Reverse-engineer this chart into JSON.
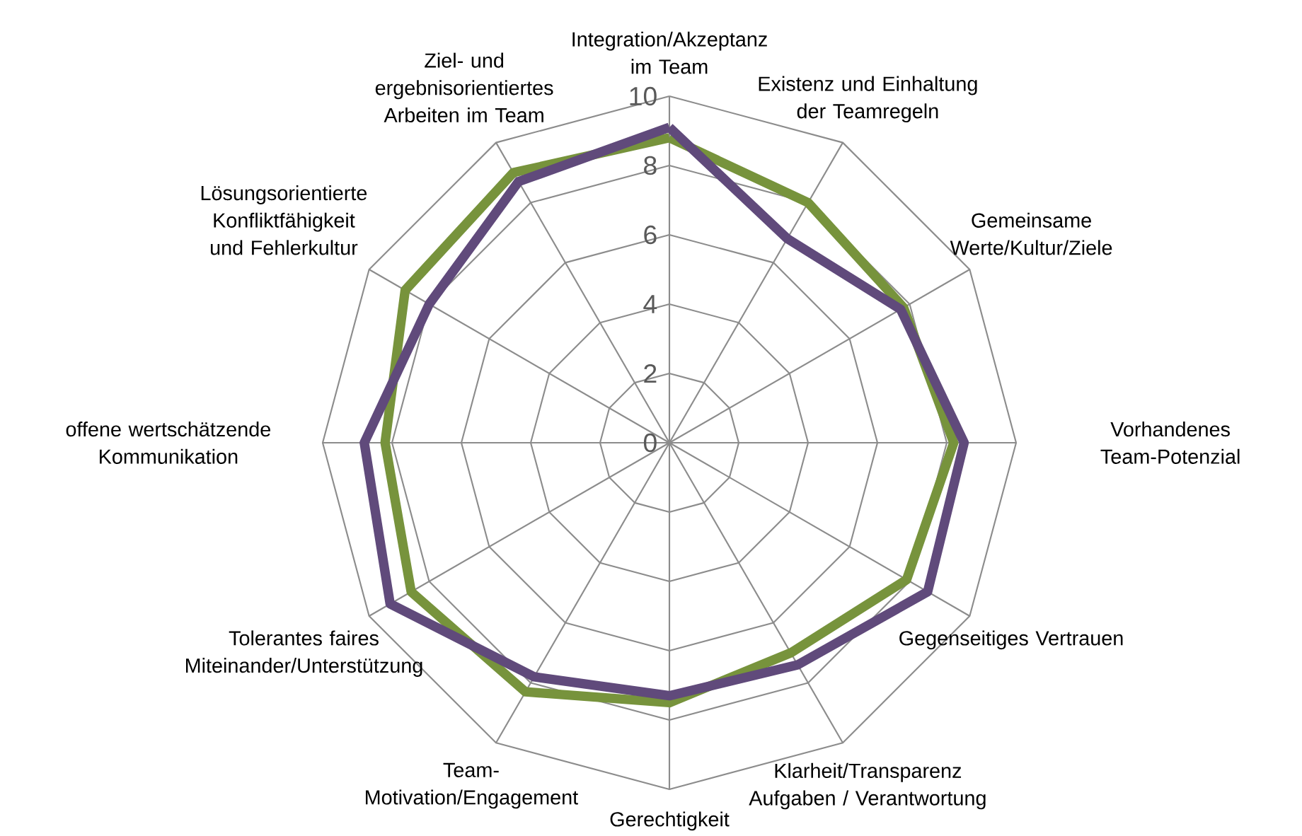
{
  "chart_data": {
    "type": "radar",
    "categories": [
      "Integration/Akzeptanz im Team",
      "Existenz und Einhaltung der Teamregeln",
      "Gemeinsame Werte/Kultur/Ziele",
      "Vorhandenes Team-Potenzial",
      "Gegenseitiges Vertrauen",
      "Klarheit/Transparenz Aufgaben / Verantwortung",
      "Gerechtigkeit",
      "Team-Motivation/Engagement",
      "Tolerantes faires Miteinander/Unterstützung",
      "offene wertschätzende Kommunikation",
      "Lösungsorientierte Konfliktfähigkeit und Fehlerkultur",
      "Ziel- und ergebnisorientiertes Arbeiten im Team"
    ],
    "series": [
      {
        "color": "#77933c",
        "values": [
          8.8,
          8.0,
          7.8,
          8.2,
          7.9,
          7.0,
          7.5,
          8.3,
          8.6,
          8.2,
          8.8,
          9.0
        ]
      },
      {
        "color": "#604a7b",
        "values": [
          9.1,
          6.8,
          7.7,
          8.5,
          8.6,
          7.4,
          7.3,
          7.8,
          9.3,
          8.8,
          8.0,
          8.7
        ]
      }
    ],
    "ylim": [
      0,
      10
    ],
    "yticks": [
      0,
      2,
      4,
      6,
      8,
      10
    ],
    "grid": true
  }
}
